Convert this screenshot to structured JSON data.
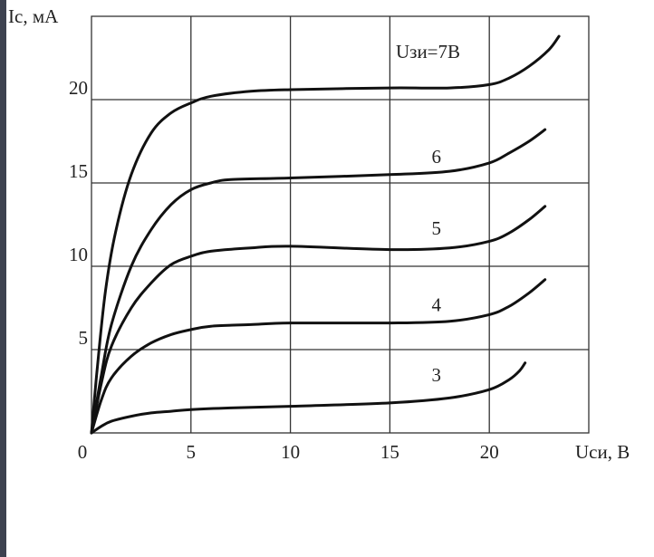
{
  "chart_data": {
    "type": "line",
    "xlabel": "Uси, В",
    "ylabel": "Iс, мА",
    "xlim": [
      0,
      25
    ],
    "ylim": [
      0,
      25
    ],
    "x_ticks": [
      "0",
      "5",
      "10",
      "15",
      "20"
    ],
    "y_ticks": [
      "5",
      "10",
      "15",
      "20"
    ],
    "grid": true,
    "series": [
      {
        "name": "Uзи=7В",
        "x": [
          0,
          0.3,
          0.7,
          1.2,
          2,
          3,
          4,
          5,
          6,
          8,
          10,
          15,
          18,
          20,
          21,
          22,
          23,
          23.5
        ],
        "y": [
          0,
          4,
          8.5,
          12,
          15.5,
          18,
          19.2,
          19.8,
          20.2,
          20.5,
          20.6,
          20.7,
          20.7,
          20.9,
          21.3,
          22,
          23,
          23.8
        ]
      },
      {
        "name": "6",
        "x": [
          0,
          0.5,
          1,
          2,
          3,
          4,
          5,
          6,
          7,
          10,
          15,
          18,
          20,
          21,
          22,
          22.8
        ],
        "y": [
          0,
          3.5,
          6.5,
          10,
          12.2,
          13.7,
          14.6,
          15,
          15.2,
          15.3,
          15.5,
          15.7,
          16.2,
          16.8,
          17.5,
          18.2
        ]
      },
      {
        "name": "5",
        "x": [
          0,
          0.5,
          1,
          2,
          3,
          4,
          5,
          6,
          8,
          10,
          15,
          18,
          20,
          21,
          22,
          22.8
        ],
        "y": [
          0,
          3,
          5.2,
          7.5,
          9,
          10.1,
          10.6,
          10.9,
          11.1,
          11.2,
          11,
          11.1,
          11.5,
          12,
          12.8,
          13.6
        ]
      },
      {
        "name": "4",
        "x": [
          0,
          0.5,
          1,
          2,
          3,
          4,
          5,
          6,
          8,
          10,
          15,
          18,
          20,
          21,
          22,
          22.8
        ],
        "y": [
          0,
          2,
          3.3,
          4.6,
          5.4,
          5.9,
          6.2,
          6.4,
          6.5,
          6.6,
          6.6,
          6.7,
          7.1,
          7.6,
          8.4,
          9.2
        ]
      },
      {
        "name": "3",
        "x": [
          0,
          0.5,
          1,
          2,
          3,
          4,
          5,
          7,
          10,
          15,
          18,
          20,
          21,
          21.5,
          21.8
        ],
        "y": [
          0,
          0.4,
          0.7,
          1,
          1.2,
          1.3,
          1.4,
          1.5,
          1.6,
          1.8,
          2.1,
          2.6,
          3.2,
          3.7,
          4.2
        ]
      }
    ],
    "labels": [
      {
        "text": "Uзи=7В",
        "x": 15.3,
        "y": 22.5
      },
      {
        "text": "6",
        "x": 17.1,
        "y": 16.2
      },
      {
        "text": "5",
        "x": 17.1,
        "y": 11.9
      },
      {
        "text": "4",
        "x": 17.1,
        "y": 7.3
      },
      {
        "text": "3",
        "x": 17.1,
        "y": 3.1
      }
    ]
  }
}
